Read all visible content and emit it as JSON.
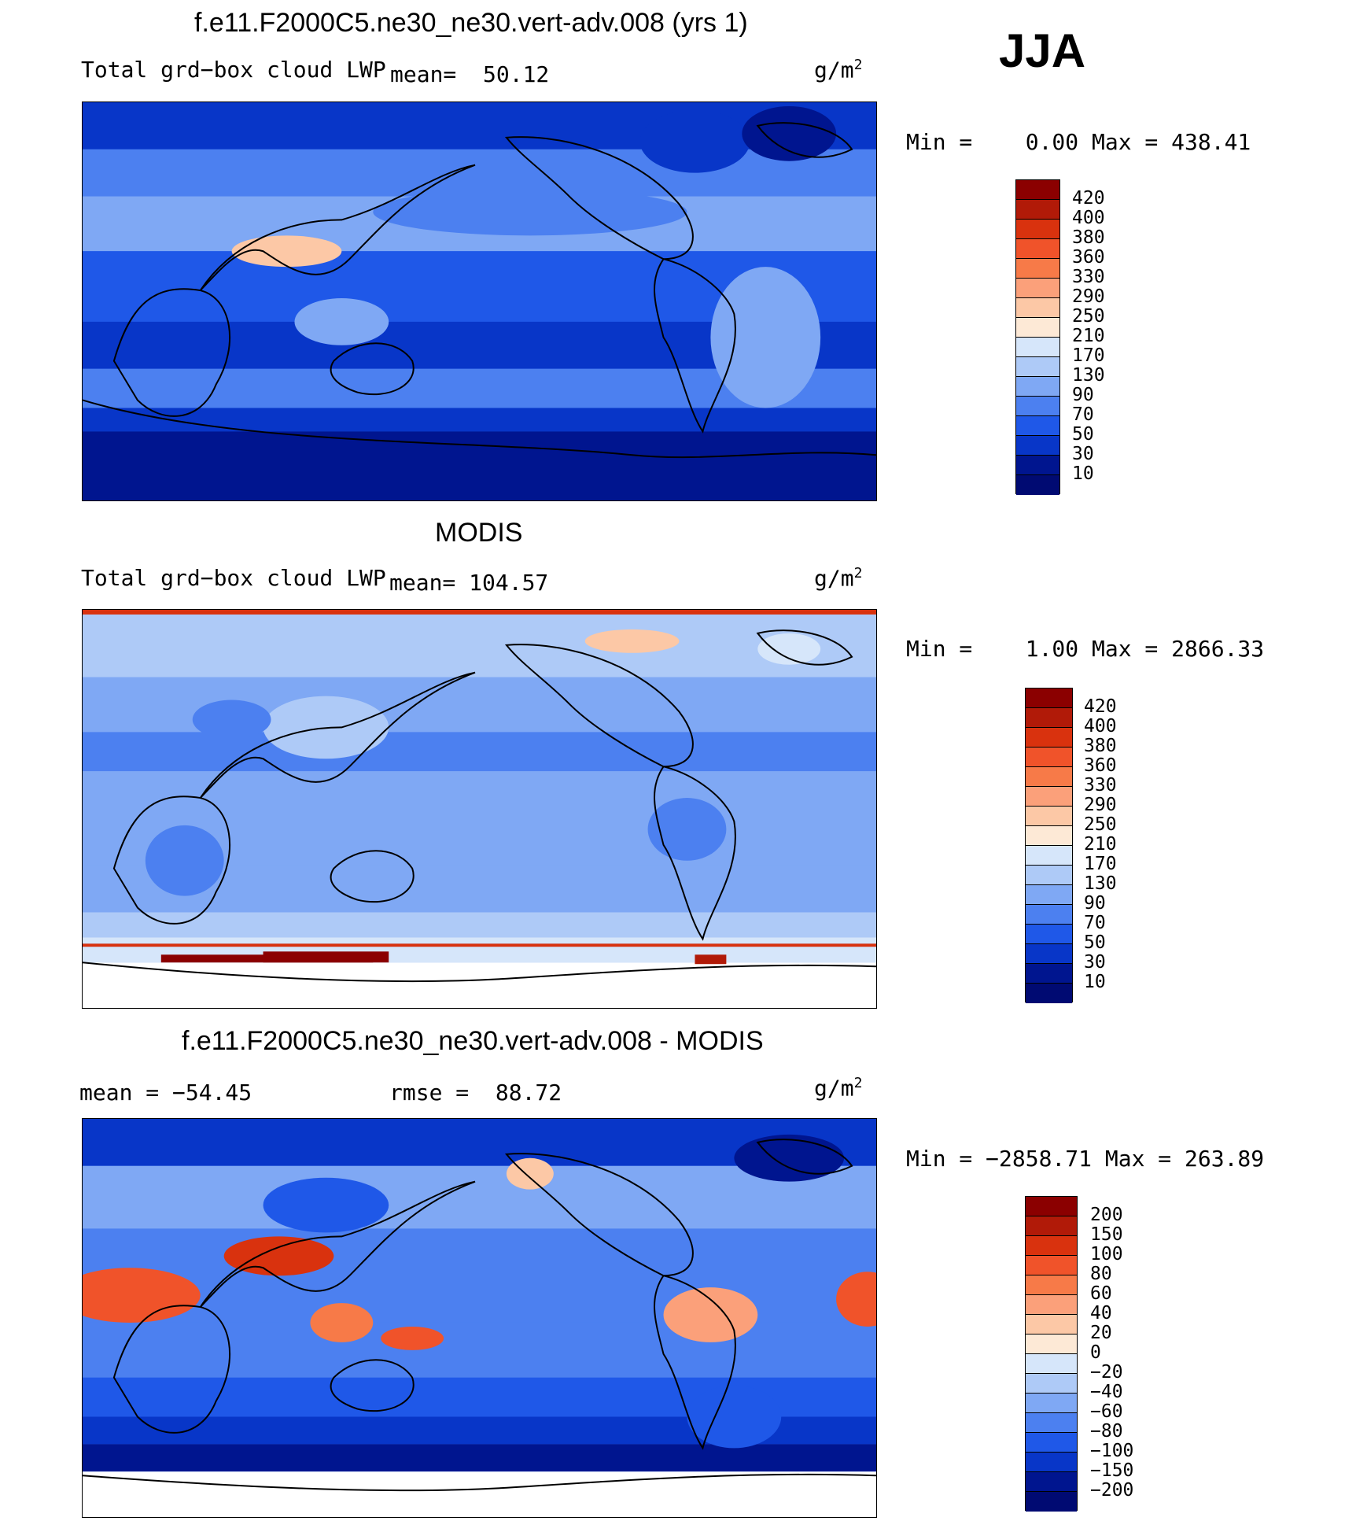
{
  "season": "JJA",
  "panels": [
    {
      "title": "f.e11.F2000C5.ne30_ne30.vert-adv.008 (yrs 1)",
      "left_label": "Total grd−box cloud LWP",
      "mean_label": "mean=  50.12",
      "unit_base": "g/m",
      "unit_exp": "2",
      "min_max": "Min =    0.00 Max = 438.41",
      "colorbar_labels": [
        "420",
        "400",
        "380",
        "360",
        "330",
        "290",
        "250",
        "210",
        "170",
        "130",
        "90",
        "70",
        "50",
        "30",
        "10"
      ],
      "colorbar_colors": [
        "#8b0000",
        "#b11a08",
        "#d9320e",
        "#f0532a",
        "#f77a48",
        "#fba07a",
        "#fcc8a6",
        "#fde9d6",
        "#d6e6fa",
        "#aecaf7",
        "#7fa8f4",
        "#4c80f0",
        "#1f58e8",
        "#0836c8",
        "#00158f",
        "#000a72"
      ]
    },
    {
      "title": "MODIS",
      "left_label": "Total grd−box cloud LWP",
      "mean_label": "mean= 104.57",
      "unit_base": "g/m",
      "unit_exp": "2",
      "min_max": "Min =    1.00 Max = 2866.33",
      "colorbar_labels": [
        "420",
        "400",
        "380",
        "360",
        "330",
        "290",
        "250",
        "210",
        "170",
        "130",
        "90",
        "70",
        "50",
        "30",
        "10"
      ],
      "colorbar_colors": [
        "#8b0000",
        "#b11a08",
        "#d9320e",
        "#f0532a",
        "#f77a48",
        "#fba07a",
        "#fcc8a6",
        "#fde9d6",
        "#d6e6fa",
        "#aecaf7",
        "#7fa8f4",
        "#4c80f0",
        "#1f58e8",
        "#0836c8",
        "#00158f",
        "#000a72"
      ]
    },
    {
      "title": "f.e11.F2000C5.ne30_ne30.vert-adv.008 - MODIS",
      "left_label": "mean = −54.45",
      "mean_label": "rmse =  88.72",
      "unit_base": "g/m",
      "unit_exp": "2",
      "min_max": "Min = −2858.71 Max = 263.89",
      "colorbar_labels": [
        "200",
        "150",
        "100",
        "80",
        "60",
        "40",
        "20",
        "0",
        "−20",
        "−40",
        "−60",
        "−80",
        "−100",
        "−150",
        "−200"
      ],
      "colorbar_colors": [
        "#8b0000",
        "#b11a08",
        "#d9320e",
        "#f0532a",
        "#f77a48",
        "#fba07a",
        "#fcc8a6",
        "#fde9d6",
        "#d6e6fa",
        "#aecaf7",
        "#7fa8f4",
        "#4c80f0",
        "#1f58e8",
        "#0836c8",
        "#00158f",
        "#000a72"
      ]
    }
  ]
}
